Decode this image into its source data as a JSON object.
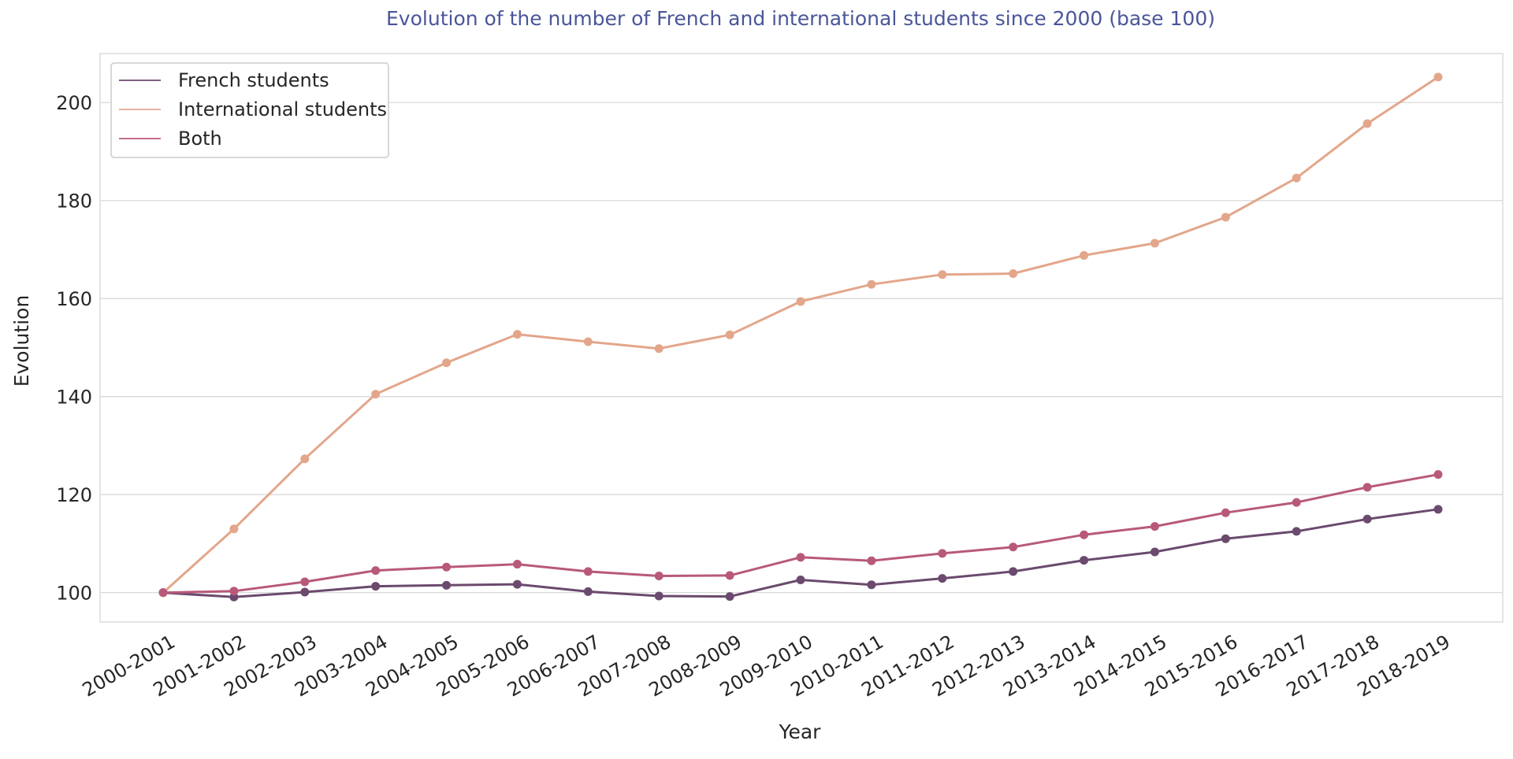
{
  "chart_data": {
    "type": "line",
    "title": "Evolution of the number of French and international students since 2000 (base 100)",
    "xlabel": "Year",
    "ylabel": "Evolution",
    "categories": [
      "2000-2001",
      "2001-2002",
      "2002-2003",
      "2003-2004",
      "2004-2005",
      "2005-2006",
      "2006-2007",
      "2007-2008",
      "2008-2009",
      "2009-2010",
      "2010-2011",
      "2011-2012",
      "2012-2013",
      "2013-2014",
      "2014-2015",
      "2015-2016",
      "2016-2017",
      "2017-2018",
      "2018-2019"
    ],
    "ylim": [
      94,
      210
    ],
    "yticks": [
      100,
      120,
      140,
      160,
      180,
      200
    ],
    "grid": "horizontal",
    "legend": "top-left",
    "series": [
      {
        "name": "French students",
        "color": "#6b4a6e",
        "values": [
          100,
          99.1,
          100.1,
          101.3,
          101.5,
          101.7,
          100.2,
          99.3,
          99.2,
          102.6,
          101.6,
          102.9,
          104.3,
          106.6,
          108.3,
          111.0,
          112.5,
          115.0,
          117.0
        ]
      },
      {
        "name": "International students",
        "color": "#e3a68b",
        "values": [
          100,
          113.0,
          127.3,
          140.5,
          146.9,
          152.7,
          151.2,
          149.8,
          152.6,
          159.4,
          162.9,
          164.9,
          165.1,
          168.8,
          171.3,
          176.6,
          184.6,
          195.7,
          205.2
        ]
      },
      {
        "name": "Both",
        "color": "#b8597a",
        "values": [
          100,
          100.3,
          102.2,
          104.5,
          105.2,
          105.8,
          104.3,
          103.4,
          103.5,
          107.2,
          106.5,
          108.0,
          109.3,
          111.8,
          113.5,
          116.3,
          118.4,
          121.5,
          124.1
        ]
      }
    ],
    "colors": {
      "title": "#4a5699",
      "grid": "#d9d9d9",
      "frame": "#dcdcdc",
      "text": "#262626"
    }
  }
}
